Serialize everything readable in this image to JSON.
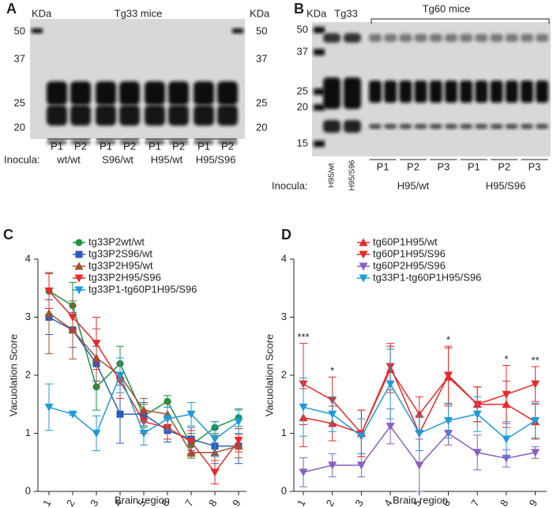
{
  "blots": [
    {
      "panel": "A",
      "kda_left": "KDa",
      "kda_right": "KDa",
      "title": "Tg33 mice",
      "markers": [
        "50",
        "37",
        "25",
        "20"
      ],
      "lanes": [
        "P1",
        "P2",
        "P1",
        "P2",
        "P1",
        "P2",
        "P1",
        "P2"
      ],
      "inocula_label": "Inocula:",
      "groups": [
        "wt/wt",
        "S96/wt",
        "H95/wt",
        "H95/S96"
      ]
    },
    {
      "panel": "B",
      "kda_left": "KDa",
      "control": "Tg33",
      "title": "Tg60 mice",
      "markers": [
        "50",
        "37",
        "25",
        "20",
        "15"
      ],
      "control_lanes": [
        "H95/wt",
        "H95/S96"
      ],
      "lanes": [
        "P1",
        "P2",
        "P3",
        "P1",
        "P2",
        "P3"
      ],
      "inocula_label": "Inocula:",
      "groups": [
        "H95/wt",
        "H95/S96"
      ]
    }
  ],
  "chart_data": [
    {
      "type": "line",
      "panel": "C",
      "x_label": "Brain region",
      "y_label": "Vacuolation Score",
      "categories": [
        "1",
        "2",
        "3",
        "4",
        "5",
        "6",
        "7",
        "8",
        "9"
      ],
      "ylim": [
        0,
        4
      ],
      "yticks": [
        0,
        1,
        2,
        3,
        4
      ],
      "series": [
        {
          "name": "tg33P2wt/wt",
          "color": "#1a9641",
          "marker": "circle",
          "values": [
            3.45,
            3.2,
            1.8,
            2.2,
            1.3,
            1.55,
            0.8,
            1.1,
            1.27
          ],
          "errors": [
            0.3,
            0.4,
            0.4,
            0.3,
            0.2,
            0.1,
            0.2,
            0.1,
            0.15
          ]
        },
        {
          "name": "tg33P2S96/wt",
          "color": "#2b5cb8",
          "marker": "square",
          "values": [
            3.0,
            2.78,
            2.2,
            1.33,
            1.33,
            1.05,
            0.9,
            0.78,
            0.78
          ],
          "errors": [
            0.3,
            0.3,
            0.3,
            0.5,
            0.2,
            0.2,
            0.2,
            0.3,
            0.3
          ]
        },
        {
          "name": "tg33P2H95/wt",
          "color": "#a0522d",
          "marker": "triangle-up",
          "values": [
            3.07,
            2.78,
            2.3,
            2.0,
            1.4,
            1.33,
            0.67,
            0.67,
            0.78
          ],
          "errors": [
            0.7,
            0.5,
            0.5,
            0.3,
            0.2,
            0.2,
            0.1,
            0.3,
            0.2
          ]
        },
        {
          "name": "tg33P2H95/S96",
          "color": "#e8292a",
          "marker": "triangle-down",
          "values": [
            3.45,
            3.0,
            2.55,
            1.9,
            1.2,
            1.1,
            0.85,
            0.33,
            0.88
          ],
          "errors": [
            0.3,
            0.2,
            0.45,
            0.3,
            0.2,
            0.2,
            0.2,
            0.2,
            0.2
          ]
        },
        {
          "name": "tg33P1-tg60P1H95/S96",
          "color": "#1e9bd7",
          "marker": "triangle-down",
          "values": [
            1.45,
            1.33,
            1.0,
            2.0,
            1.0,
            1.25,
            1.33,
            0.9,
            1.2
          ],
          "errors": [
            0.4,
            0.02,
            0.3,
            0.3,
            0.2,
            0.2,
            0.2,
            0.3,
            0.2
          ]
        }
      ]
    },
    {
      "type": "line",
      "panel": "D",
      "x_label": "Brain region",
      "y_label": "Vacuolation Score",
      "categories": [
        "1",
        "2",
        "3",
        "4",
        "5",
        "6",
        "7",
        "8",
        "9"
      ],
      "ylim": [
        0,
        4
      ],
      "yticks": [
        0,
        1,
        2,
        3,
        4
      ],
      "series": [
        {
          "name": "tg60P1H95/wt",
          "color": "#e8292a",
          "marker": "triangle-up",
          "values": [
            1.27,
            1.17,
            1.0,
            2.1,
            1.33,
            1.97,
            1.5,
            1.5,
            1.2
          ],
          "errors": [
            0.5,
            0.3,
            0.4,
            0.4,
            0.3,
            0.5,
            0.3,
            0.4,
            0.3
          ]
        },
        {
          "name": "tg60P1H95/S96",
          "color": "#e8292a",
          "marker": "triangle-down",
          "values": [
            1.85,
            1.57,
            1.0,
            2.15,
            1.0,
            2.0,
            1.5,
            1.67,
            1.85
          ],
          "errors": [
            0.7,
            0.4,
            0.4,
            0.4,
            0.3,
            0.5,
            0.3,
            0.5,
            0.3
          ]
        },
        {
          "name": "tg60P2H95/S96",
          "color": "#8b5fbf",
          "marker": "triangle-down",
          "values": [
            0.33,
            0.45,
            0.45,
            1.12,
            0.45,
            1.0,
            0.67,
            0.57,
            0.67
          ],
          "errors": [
            0.25,
            0.2,
            0.2,
            0.3,
            0.45,
            0.2,
            0.3,
            0.15,
            0.1
          ]
        },
        {
          "name": "tg33P1-tg60P1H95/S96",
          "color": "#1e9bd7",
          "marker": "triangle-down",
          "values": [
            1.45,
            1.33,
            0.95,
            1.85,
            1.0,
            1.22,
            1.33,
            0.9,
            1.22
          ],
          "errors": [
            0.5,
            0.3,
            0.3,
            0.6,
            0.3,
            0.3,
            0.3,
            0.3,
            0.3
          ]
        }
      ],
      "annotations": [
        {
          "x": "1",
          "text": "***"
        },
        {
          "x": "2",
          "text": "*"
        },
        {
          "x": "6",
          "text": "*"
        },
        {
          "x": "8",
          "text": "*"
        },
        {
          "x": "9",
          "text": "**"
        }
      ]
    }
  ]
}
